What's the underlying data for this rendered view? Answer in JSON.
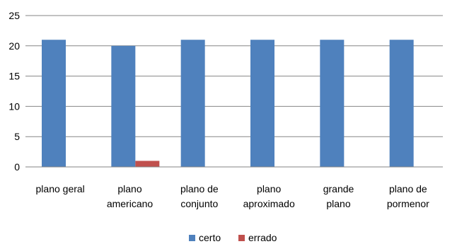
{
  "chart_data": {
    "type": "bar",
    "categories": [
      [
        "plano geral"
      ],
      [
        "plano",
        "americano"
      ],
      [
        "plano de",
        "conjunto"
      ],
      [
        "plano",
        "aproximado"
      ],
      [
        "grande",
        "plano"
      ],
      [
        "plano de",
        "pormenor"
      ]
    ],
    "series": [
      {
        "name": "certo",
        "color": "#4F81BD",
        "values": [
          21,
          20,
          21,
          21,
          21,
          21
        ]
      },
      {
        "name": "errado",
        "color": "#C0504D",
        "values": [
          0,
          1,
          0,
          0,
          0,
          0
        ]
      }
    ],
    "ylim": [
      0,
      25
    ],
    "yticks": [
      0,
      5,
      10,
      15,
      20,
      25
    ],
    "grid": true,
    "legend": "bottom"
  }
}
